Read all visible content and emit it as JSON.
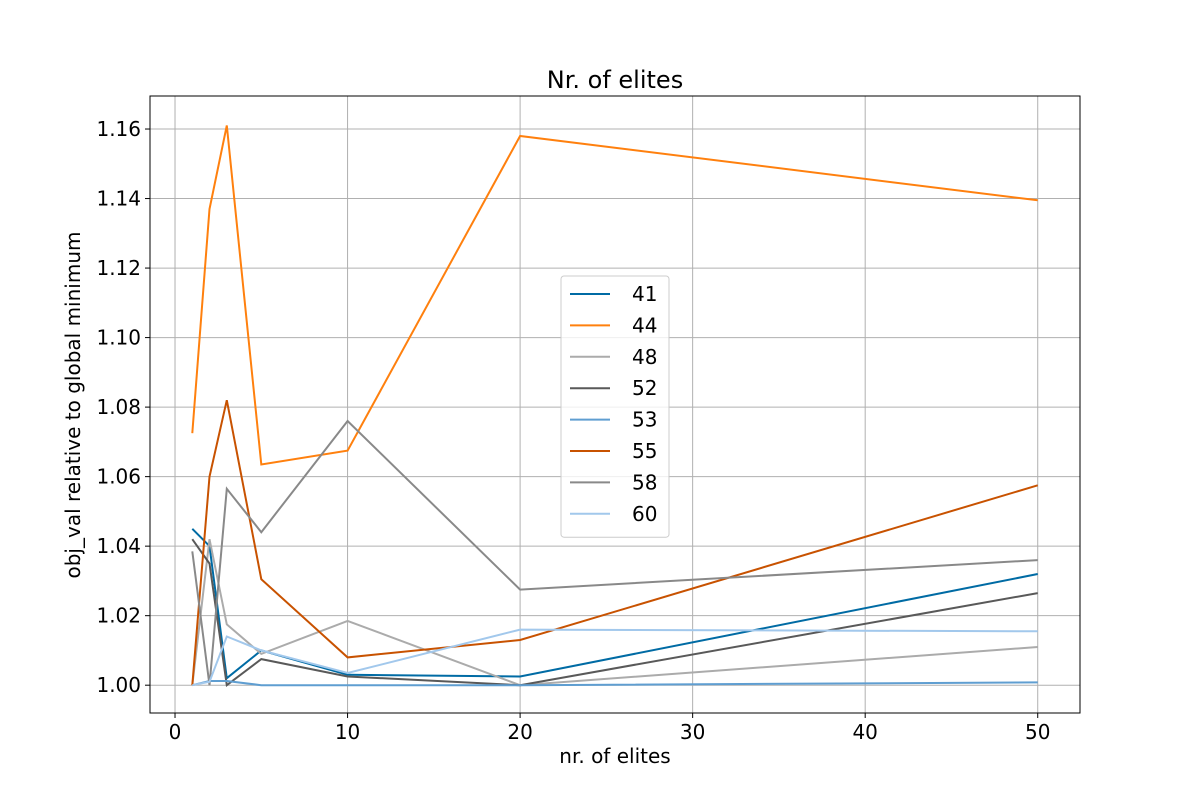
{
  "chart_data": {
    "type": "line",
    "title": "Nr. of elites",
    "xlabel": "nr. of elites",
    "ylabel": "obj_val relative to global minimum",
    "x": [
      1,
      2,
      3,
      5,
      10,
      20,
      50
    ],
    "xlim": [
      -1.45,
      52.45
    ],
    "ylim": [
      0.992,
      1.1695
    ],
    "xticks": [
      0,
      10,
      20,
      30,
      40,
      50
    ],
    "xtick_labels": [
      "0",
      "10",
      "20",
      "30",
      "40",
      "50"
    ],
    "yticks": [
      1.0,
      1.02,
      1.04,
      1.06,
      1.08,
      1.1,
      1.12,
      1.14,
      1.16
    ],
    "ytick_labels": [
      "1.00",
      "1.02",
      "1.04",
      "1.06",
      "1.08",
      "1.10",
      "1.12",
      "1.14",
      "1.16"
    ],
    "grid": true,
    "legend_position": "center",
    "series": [
      {
        "name": "41",
        "color": "#006ba4",
        "values": [
          1.045,
          1.04,
          1.002,
          1.01,
          1.003,
          1.0025,
          1.032
        ]
      },
      {
        "name": "44",
        "color": "#ff800e",
        "values": [
          1.0725,
          1.137,
          1.161,
          1.0635,
          1.0675,
          1.158,
          1.1395
        ]
      },
      {
        "name": "48",
        "color": "#ababab",
        "values": [
          1.0,
          1.042,
          1.0175,
          1.009,
          1.0185,
          1.0,
          1.011
        ]
      },
      {
        "name": "52",
        "color": "#595959",
        "values": [
          1.042,
          1.035,
          1.0,
          1.0075,
          1.0025,
          1.0,
          1.0265
        ]
      },
      {
        "name": "53",
        "color": "#5f9ed1",
        "values": [
          1.0,
          1.0012,
          1.0012,
          1.0,
          1.0,
          1.0,
          1.0008
        ]
      },
      {
        "name": "55",
        "color": "#c85200",
        "values": [
          1.0,
          1.06,
          1.082,
          1.0305,
          1.008,
          1.013,
          1.0575
        ]
      },
      {
        "name": "58",
        "color": "#898989",
        "values": [
          1.0385,
          1.0,
          1.0565,
          1.044,
          1.076,
          1.0275,
          1.036
        ]
      },
      {
        "name": "60",
        "color": "#a2c8ec",
        "values": [
          1.0,
          1.001,
          1.014,
          1.01,
          1.0035,
          1.016,
          1.0155
        ]
      }
    ]
  }
}
